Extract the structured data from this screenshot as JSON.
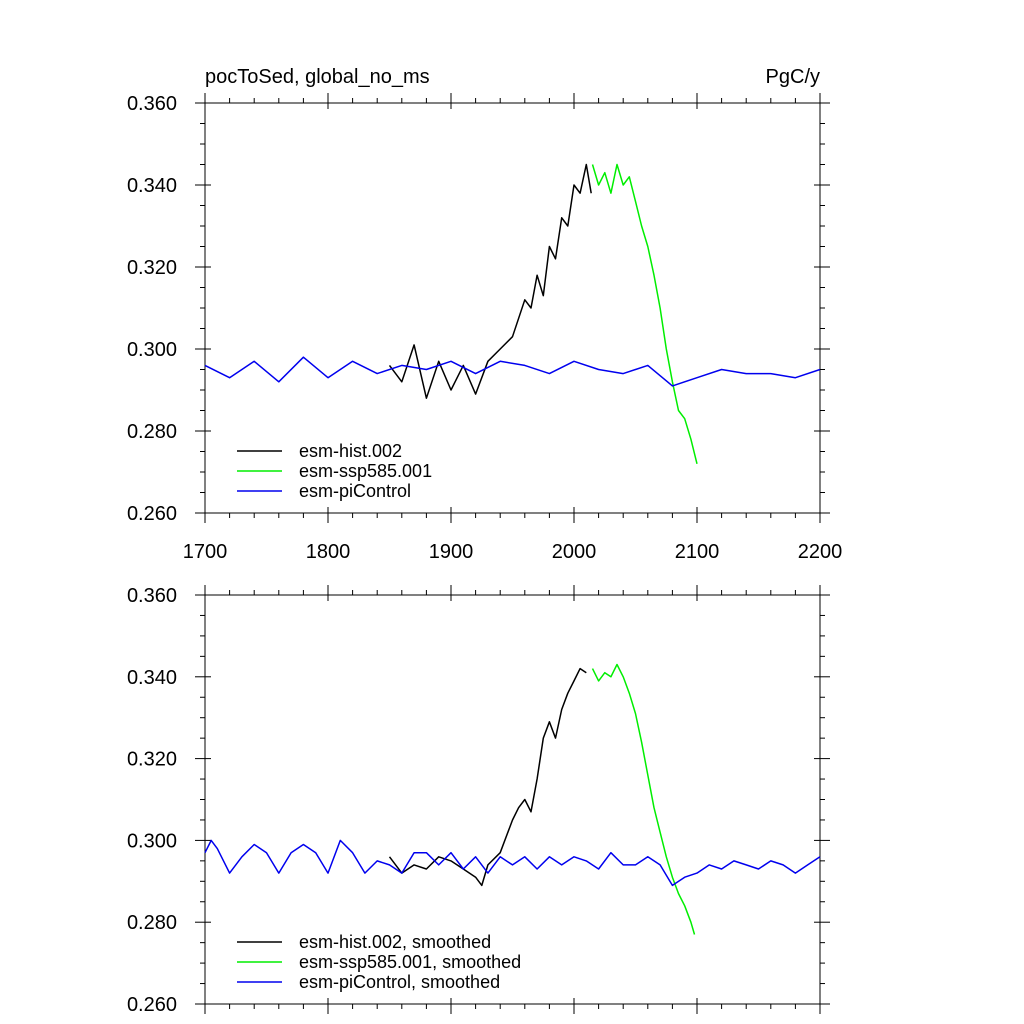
{
  "chart_data": [
    {
      "type": "line",
      "title": "pocToSed, global_no_ms",
      "units": "PgC/y",
      "xlim": [
        1700,
        2200
      ],
      "ylim": [
        0.26,
        0.36
      ],
      "x_ticks": [
        "1700",
        "1800",
        "1900",
        "2000",
        "2100",
        "2200"
      ],
      "y_ticks": [
        "0.260",
        "0.280",
        "0.300",
        "0.320",
        "0.340",
        "0.360"
      ],
      "legend": "bottom-left",
      "grid": false,
      "series": [
        {
          "name": "esm-hist.002",
          "color": "#000000",
          "x": [
            1850,
            1860,
            1870,
            1880,
            1890,
            1900,
            1910,
            1920,
            1930,
            1940,
            1950,
            1960,
            1965,
            1970,
            1975,
            1980,
            1985,
            1990,
            1995,
            2000,
            2005,
            2010,
            2014
          ],
          "values": [
            0.296,
            0.292,
            0.301,
            0.288,
            0.297,
            0.29,
            0.296,
            0.289,
            0.297,
            0.3,
            0.303,
            0.312,
            0.31,
            0.318,
            0.313,
            0.325,
            0.322,
            0.332,
            0.33,
            0.34,
            0.338,
            0.345,
            0.338
          ]
        },
        {
          "name": "esm-ssp585.001",
          "color": "#00ee00",
          "x": [
            2015,
            2020,
            2025,
            2030,
            2035,
            2040,
            2045,
            2050,
            2055,
            2060,
            2065,
            2070,
            2075,
            2080,
            2085,
            2090,
            2095,
            2100
          ],
          "values": [
            0.345,
            0.34,
            0.343,
            0.338,
            0.345,
            0.34,
            0.342,
            0.336,
            0.33,
            0.325,
            0.318,
            0.31,
            0.3,
            0.292,
            0.285,
            0.283,
            0.278,
            0.272
          ]
        },
        {
          "name": "esm-piControl",
          "color": "#0000ee",
          "x": [
            1700,
            1720,
            1740,
            1760,
            1780,
            1800,
            1820,
            1840,
            1860,
            1880,
            1900,
            1920,
            1940,
            1960,
            1980,
            2000,
            2020,
            2040,
            2060,
            2080,
            2100,
            2120,
            2140,
            2160,
            2180,
            2200
          ],
          "values": [
            0.296,
            0.293,
            0.297,
            0.292,
            0.298,
            0.293,
            0.297,
            0.294,
            0.296,
            0.295,
            0.297,
            0.294,
            0.297,
            0.296,
            0.294,
            0.297,
            0.295,
            0.294,
            0.296,
            0.291,
            0.293,
            0.295,
            0.294,
            0.294,
            0.293,
            0.295
          ]
        }
      ]
    },
    {
      "type": "line",
      "title": "",
      "units": "",
      "xlim": [
        1700,
        2200
      ],
      "ylim": [
        0.26,
        0.36
      ],
      "x_ticks": [],
      "y_ticks": [
        "0.260",
        "0.280",
        "0.300",
        "0.320",
        "0.340",
        "0.360"
      ],
      "legend": "bottom-left",
      "grid": false,
      "series": [
        {
          "name": "esm-hist.002, smoothed",
          "color": "#000000",
          "x": [
            1850,
            1860,
            1870,
            1880,
            1890,
            1900,
            1910,
            1920,
            1925,
            1930,
            1940,
            1950,
            1955,
            1960,
            1965,
            1970,
            1975,
            1980,
            1985,
            1990,
            1995,
            2000,
            2005,
            2010
          ],
          "values": [
            0.296,
            0.292,
            0.294,
            0.293,
            0.296,
            0.295,
            0.293,
            0.291,
            0.289,
            0.294,
            0.297,
            0.305,
            0.308,
            0.31,
            0.307,
            0.315,
            0.325,
            0.329,
            0.325,
            0.332,
            0.336,
            0.339,
            0.342,
            0.341
          ]
        },
        {
          "name": "esm-ssp585.001, smoothed",
          "color": "#00ee00",
          "x": [
            2015,
            2020,
            2025,
            2030,
            2035,
            2040,
            2045,
            2050,
            2055,
            2060,
            2065,
            2070,
            2075,
            2080,
            2085,
            2090,
            2095,
            2098
          ],
          "values": [
            0.342,
            0.339,
            0.341,
            0.34,
            0.343,
            0.34,
            0.336,
            0.331,
            0.324,
            0.316,
            0.308,
            0.302,
            0.296,
            0.291,
            0.287,
            0.284,
            0.28,
            0.277
          ]
        },
        {
          "name": "esm-piControl, smoothed",
          "color": "#0000ee",
          "x": [
            1700,
            1705,
            1710,
            1720,
            1730,
            1740,
            1750,
            1760,
            1770,
            1780,
            1790,
            1800,
            1810,
            1820,
            1830,
            1840,
            1850,
            1860,
            1870,
            1880,
            1890,
            1900,
            1910,
            1920,
            1930,
            1940,
            1950,
            1960,
            1970,
            1980,
            1990,
            2000,
            2010,
            2020,
            2030,
            2040,
            2050,
            2060,
            2070,
            2080,
            2090,
            2100,
            2110,
            2120,
            2130,
            2140,
            2150,
            2160,
            2170,
            2180,
            2190,
            2200
          ],
          "values": [
            0.297,
            0.3,
            0.298,
            0.292,
            0.296,
            0.299,
            0.297,
            0.292,
            0.297,
            0.299,
            0.297,
            0.292,
            0.3,
            0.297,
            0.292,
            0.295,
            0.294,
            0.292,
            0.297,
            0.297,
            0.294,
            0.297,
            0.293,
            0.296,
            0.292,
            0.296,
            0.294,
            0.296,
            0.293,
            0.296,
            0.294,
            0.296,
            0.295,
            0.293,
            0.297,
            0.294,
            0.294,
            0.296,
            0.294,
            0.289,
            0.291,
            0.292,
            0.294,
            0.293,
            0.295,
            0.294,
            0.293,
            0.295,
            0.294,
            0.292,
            0.294,
            0.296
          ]
        }
      ]
    }
  ]
}
